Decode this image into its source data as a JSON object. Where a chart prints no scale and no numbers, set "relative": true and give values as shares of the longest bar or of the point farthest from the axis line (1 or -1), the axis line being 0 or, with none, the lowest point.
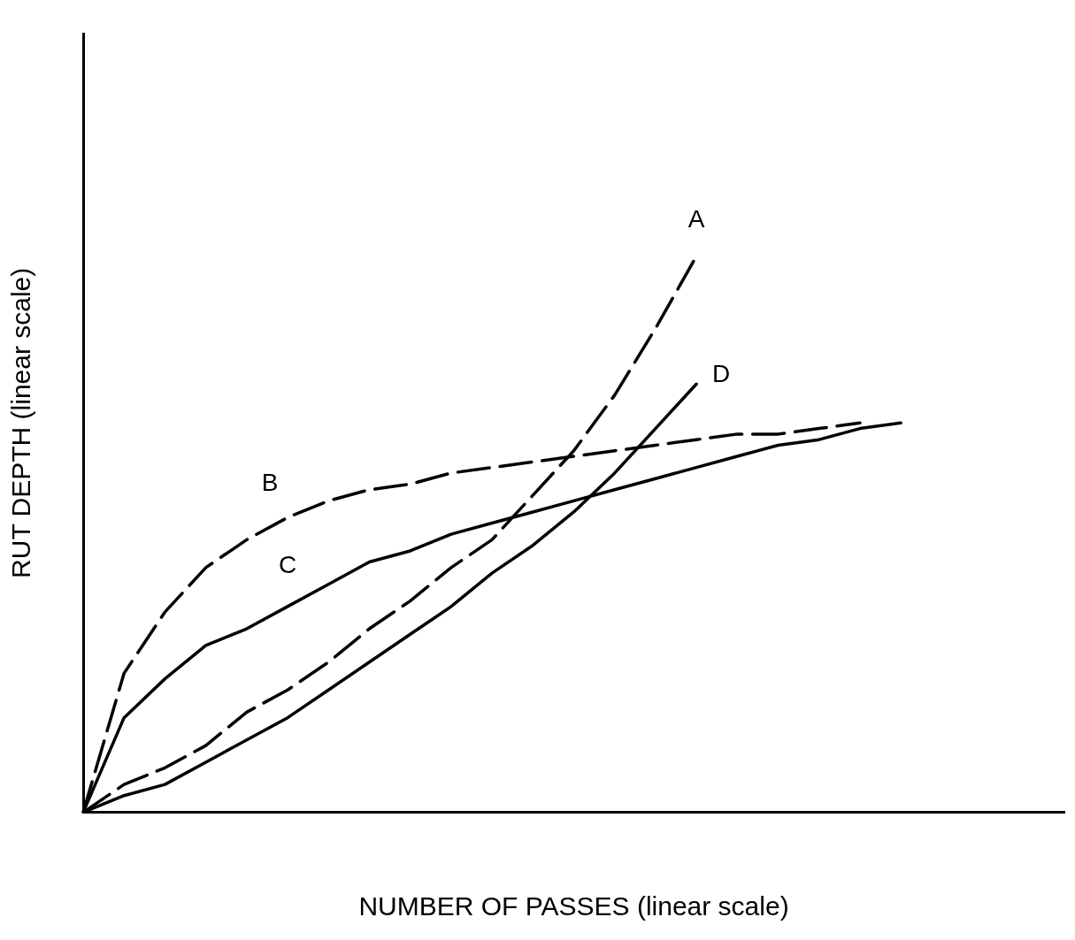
{
  "chart_data": {
    "type": "line",
    "relative": true,
    "xlabel": "NUMBER OF PASSES (linear scale)",
    "ylabel": "RUT DEPTH (linear scale)",
    "categories": [
      null,
      null,
      null,
      null,
      null,
      null,
      null,
      null,
      null,
      null,
      null,
      null,
      null,
      null,
      null,
      null,
      null,
      null,
      null,
      null,
      null,
      null,
      null,
      null,
      null
    ],
    "marker": "none",
    "grid": false,
    "legend": false,
    "series": [
      {
        "name": "A",
        "color": "#000000",
        "line_style": "dashed",
        "values": [
          0,
          0.05,
          0.08,
          0.12,
          0.18,
          0.22,
          0.27,
          0.33,
          0.38,
          0.44,
          0.49,
          0.57,
          0.65,
          0.75,
          0.87,
          1,
          null,
          null,
          null,
          null,
          null,
          null,
          null,
          null,
          null
        ]
      },
      {
        "name": "B",
        "color": "#000000",
        "line_style": "dashed",
        "values": [
          0,
          0.25,
          0.36,
          0.44,
          0.49,
          0.53,
          0.56,
          0.58,
          0.59,
          0.61,
          0.62,
          0.63,
          0.64,
          0.65,
          0.66,
          0.67,
          0.68,
          0.68,
          0.69,
          0.7,
          null,
          null,
          null,
          null,
          null
        ]
      },
      {
        "name": "C",
        "color": "#000000",
        "line_style": "solid",
        "values": [
          0,
          0.17,
          0.24,
          0.3,
          0.33,
          0.37,
          0.41,
          0.45,
          0.47,
          0.5,
          0.52,
          0.54,
          0.56,
          0.58,
          0.6,
          0.62,
          0.64,
          0.66,
          0.67,
          0.69,
          0.7,
          null,
          null,
          null,
          null
        ]
      },
      {
        "name": "D",
        "color": "#000000",
        "line_style": "solid",
        "values": [
          0,
          0.03,
          0.05,
          0.09,
          0.13,
          0.17,
          0.22,
          0.27,
          0.32,
          0.37,
          0.43,
          0.48,
          0.54,
          0.61,
          0.69,
          0.77,
          null,
          null,
          null,
          null,
          null,
          null,
          null,
          null,
          null
        ]
      }
    ]
  }
}
